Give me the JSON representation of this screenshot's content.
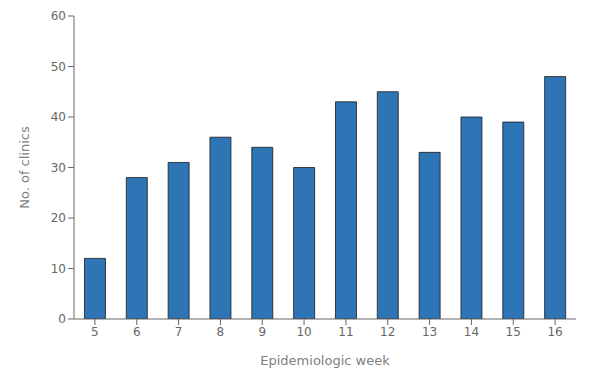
{
  "chart_data": {
    "type": "bar",
    "categories": [
      "5",
      "6",
      "7",
      "8",
      "9",
      "10",
      "11",
      "12",
      "13",
      "14",
      "15",
      "16"
    ],
    "values": [
      12,
      28,
      31,
      36,
      34,
      30,
      43,
      45,
      33,
      40,
      39,
      48
    ],
    "color": "#2E75B6",
    "xlabel": "Epidemiologic week",
    "ylabel": "No. of clinics",
    "ylim": [
      0,
      60
    ],
    "yticks": [
      0,
      10,
      20,
      30,
      40,
      50,
      60
    ],
    "grid": false
  }
}
